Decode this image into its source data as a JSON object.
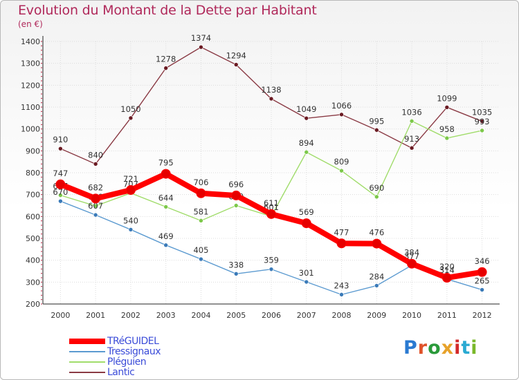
{
  "header": {
    "title": "Evolution du Montant de la Dette par Habitant",
    "subtitle": "(en €)"
  },
  "brand": {
    "letters": [
      "P",
      "r",
      "o",
      "x",
      "i",
      "t",
      "i"
    ],
    "colors": [
      "#2a7ad1",
      "#e0522a",
      "#2a9a3a",
      "#e7a22a",
      "#d32a2a",
      "#2aaad2",
      "#7ab82a"
    ]
  },
  "chart_data": {
    "type": "line",
    "title": "Evolution du Montant de la Dette par Habitant",
    "subtitle": "(en €)",
    "x": [
      "2000",
      "2001",
      "2002",
      "2003",
      "2004",
      "2005",
      "2006",
      "2007",
      "2008",
      "2009",
      "2010",
      "2011",
      "2012"
    ],
    "yticks": [
      200,
      300,
      400,
      500,
      600,
      700,
      800,
      900,
      1000,
      1100,
      1200,
      1300,
      1400
    ],
    "ylim": [
      200,
      1400
    ],
    "grid": true,
    "legend_position": "bottom-left",
    "series": [
      {
        "name": "Lantic",
        "color": "#8a3a44",
        "marker": "#6a1a22",
        "values": [
          910,
          840,
          1050,
          1278,
          1374,
          1294,
          1138,
          1049,
          1066,
          995,
          913,
          1099,
          1035
        ],
        "labels": [
          "910",
          "840",
          "1050",
          "1278",
          "1374",
          "1294",
          "1138",
          "1049",
          "1066",
          "995",
          "913",
          "1099",
          "1035"
        ]
      },
      {
        "name": "Pléguien",
        "color": "#a0dc6a",
        "marker": "#7cc84a",
        "values": [
          697,
          648,
          707,
          644,
          581,
          650,
          601,
          894,
          809,
          690,
          1036,
          958,
          993
        ],
        "labels": [
          "697",
          "648",
          "707",
          "644",
          "581",
          "650",
          "601",
          "894",
          "809",
          "690",
          "1036",
          "958",
          "993"
        ]
      },
      {
        "name": "Tressignaux",
        "color": "#5b9ad0",
        "marker": "#3a7ab8",
        "values": [
          670,
          607,
          540,
          469,
          405,
          338,
          359,
          301,
          243,
          284,
          377,
          314,
          265
        ],
        "labels": [
          "670",
          "607",
          "540",
          "469",
          "405",
          "338",
          "359",
          "301",
          "243",
          "284",
          "377",
          "314",
          "265"
        ]
      },
      {
        "name": "TRéGUIDEL",
        "color": "#ff0000",
        "marker": "#e60000",
        "values": [
          747,
          682,
          721,
          795,
          706,
          696,
          611,
          569,
          477,
          476,
          384,
          320,
          346
        ],
        "labels": [
          "747",
          "682",
          "721",
          "795",
          "706",
          "696",
          "611",
          "569",
          "477",
          "476",
          "384",
          "320",
          "346"
        ]
      }
    ]
  },
  "legend": {
    "items": [
      {
        "label": "TRéGUIDEL",
        "color": "#ff0000",
        "thick": true
      },
      {
        "label": "Tressignaux",
        "color": "#5b9ad0",
        "thick": false
      },
      {
        "label": "Pléguien",
        "color": "#a0dc6a",
        "thick": false
      },
      {
        "label": "Lantic",
        "color": "#8a3a44",
        "thick": false
      }
    ]
  }
}
